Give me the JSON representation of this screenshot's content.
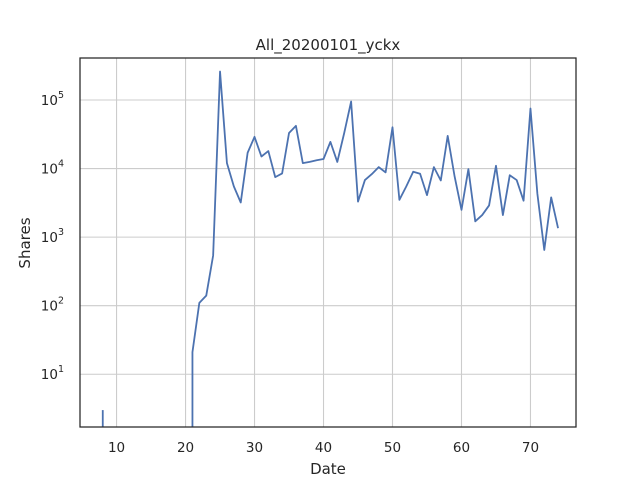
{
  "chart_data": {
    "type": "line",
    "title": "All_20200101_yckx",
    "xlabel": "Date",
    "ylabel": "Shares",
    "xlim": [
      4.7,
      76.6
    ],
    "ylim": [
      1.7,
      410000
    ],
    "yscale": "log",
    "grid": true,
    "line_color": "#4c72b0",
    "x_ticks": [
      10,
      20,
      30,
      40,
      50,
      60,
      70
    ],
    "y_ticks": [
      {
        "value": 10,
        "base": "10",
        "exp": "1"
      },
      {
        "value": 100,
        "base": "10",
        "exp": "2"
      },
      {
        "value": 1000,
        "base": "10",
        "exp": "3"
      },
      {
        "value": 10000,
        "base": "10",
        "exp": "4"
      },
      {
        "value": 100000,
        "base": "10",
        "exp": "5"
      }
    ],
    "segments": [
      {
        "x": [
          8,
          8
        ],
        "y": [
          3,
          1.7
        ]
      },
      {
        "x": [
          21,
          21,
          22,
          23,
          24,
          25,
          26,
          27,
          28,
          29,
          30,
          31,
          32,
          33,
          34,
          35,
          36,
          37,
          38,
          39,
          40,
          41,
          42,
          43,
          44,
          45,
          46,
          47,
          48,
          49,
          50,
          51,
          52,
          53,
          54,
          55,
          56,
          57,
          58,
          59,
          60,
          61,
          62,
          63,
          64,
          65,
          66,
          67,
          68,
          69,
          70,
          71,
          72,
          73,
          74
        ],
        "y": [
          1.7,
          21,
          110,
          140,
          540,
          260000,
          12000,
          5500,
          3200,
          17000,
          29000,
          15000,
          18000,
          7500,
          8500,
          33000,
          42000,
          12000,
          12500,
          13200,
          13800,
          24500,
          12500,
          33000,
          95000,
          3300,
          6800,
          8300,
          10500,
          8800,
          40000,
          3500,
          5500,
          9000,
          8400,
          4100,
          10500,
          6700,
          30000,
          7700,
          2500,
          9800,
          1700,
          2100,
          2900,
          11000,
          2100,
          8000,
          6800,
          3400,
          75000,
          4300,
          650,
          3800,
          1350
        ]
      }
    ]
  }
}
